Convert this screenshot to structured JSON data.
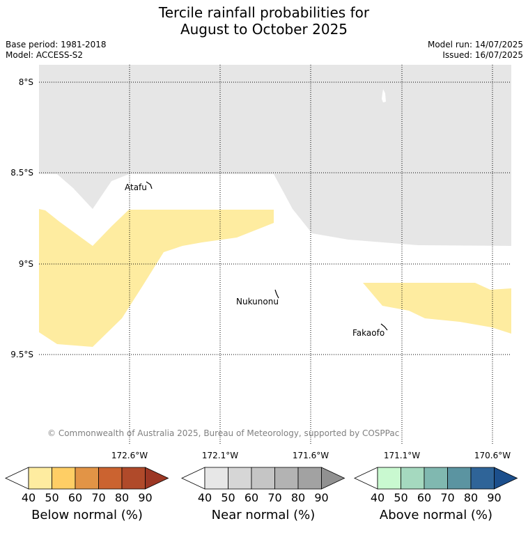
{
  "title": {
    "line1": "Tercile rainfall probabilities for",
    "line2": "August to October 2025"
  },
  "meta": {
    "base_period": "Base period: 1981-2018",
    "model": "Model: ACCESS-S2",
    "model_run": "Model run: 14/07/2025",
    "issued": "Issued: 16/07/2025"
  },
  "map": {
    "lat_labels": [
      "8°S",
      "8.5°S",
      "9°S",
      "9.5°S"
    ],
    "lon_labels": [
      "172.6°W",
      "172.1°W",
      "171.6°W",
      "171.1°W",
      "170.6°W"
    ],
    "places": [
      "Atafu",
      "Nukunonu",
      "Fakaofo"
    ],
    "copyright": "© Commonwealth of Australia 2025, Bureau of Meteorology, supported by COSPPac",
    "colors": {
      "near_normal_40": "#e6e6e6",
      "below_normal_40": "#feeca0"
    }
  },
  "colorbars": [
    {
      "label": "Below normal (%)",
      "ticks": [
        "40",
        "50",
        "60",
        "70",
        "80",
        "90"
      ],
      "colors": [
        "#ffffff",
        "#feeca0",
        "#fece65",
        "#e29446",
        "#cb6330",
        "#b04a2a",
        "#9c3724"
      ]
    },
    {
      "label": "Near normal (%)",
      "ticks": [
        "40",
        "50",
        "60",
        "70",
        "80",
        "90"
      ],
      "colors": [
        "#ffffff",
        "#e7e7e7",
        "#d6d6d6",
        "#c5c5c5",
        "#b3b3b3",
        "#a2a2a2",
        "#919191"
      ]
    },
    {
      "label": "Above normal (%)",
      "ticks": [
        "40",
        "50",
        "60",
        "70",
        "80",
        "90"
      ],
      "colors": [
        "#ffffff",
        "#c9f9d0",
        "#a5d9bf",
        "#80b8b0",
        "#5b94a1",
        "#2f6498",
        "#1c4f8c"
      ]
    }
  ]
}
